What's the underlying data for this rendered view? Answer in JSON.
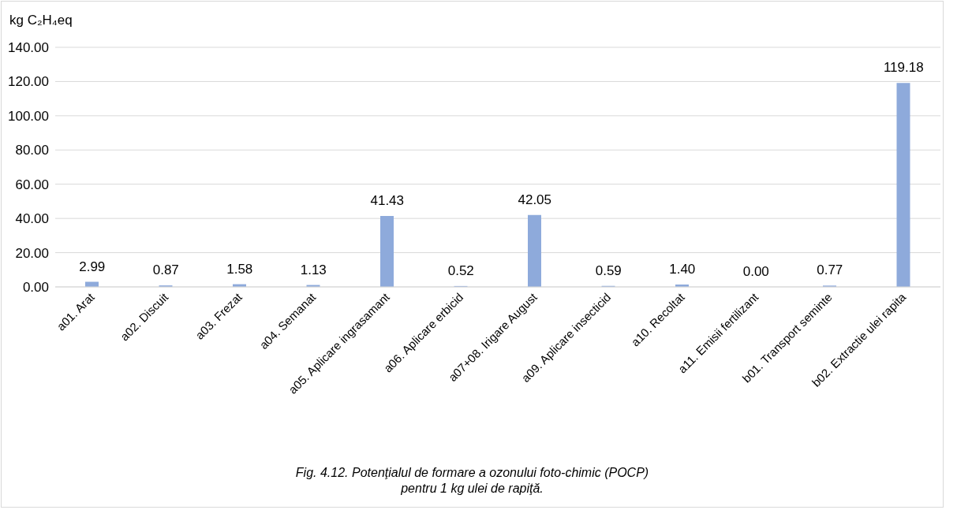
{
  "chart_data": {
    "type": "bar",
    "ylabel": "kg C₂H₄eq",
    "categories": [
      "a01. Arat",
      "a02. Discuit",
      "a03. Frezat",
      "a04. Semanat",
      "a05. Aplicare ingrasamant",
      "a06. Aplicare erbicid",
      "a07+08. Irigare August",
      "a09. Aplicare insecticid",
      "a10. Recoltat",
      "a11. Emisii fertilizant",
      "b01. Transport seminte",
      "b02. Extractie ulei rapita"
    ],
    "values": [
      2.99,
      0.87,
      1.58,
      1.13,
      41.43,
      0.52,
      42.05,
      0.59,
      1.4,
      0.0,
      0.77,
      119.18
    ],
    "value_labels": [
      "2.99",
      "0.87",
      "1.58",
      "1.13",
      "41.43",
      "0.52",
      "42.05",
      "0.59",
      "1.40",
      "0.00",
      "0.77",
      "119.18"
    ],
    "color": "#8eaadb",
    "ylim": [
      0,
      140
    ],
    "yticks": [
      {
        "value": 0,
        "label": "0.00"
      },
      {
        "value": 20,
        "label": "20.00"
      },
      {
        "value": 40,
        "label": "40.00"
      },
      {
        "value": 60,
        "label": "60.00"
      },
      {
        "value": 80,
        "label": "80.00"
      },
      {
        "value": 100,
        "label": "100.00"
      },
      {
        "value": 120,
        "label": "120.00"
      },
      {
        "value": 140,
        "label": "140.00"
      }
    ],
    "grid": "y",
    "annotations": [
      "Fig. 4.12. Potenţialul de formare a ozonului foto-chimic (POCP) pentru 1 kg ulei de rapiţă."
    ]
  }
}
